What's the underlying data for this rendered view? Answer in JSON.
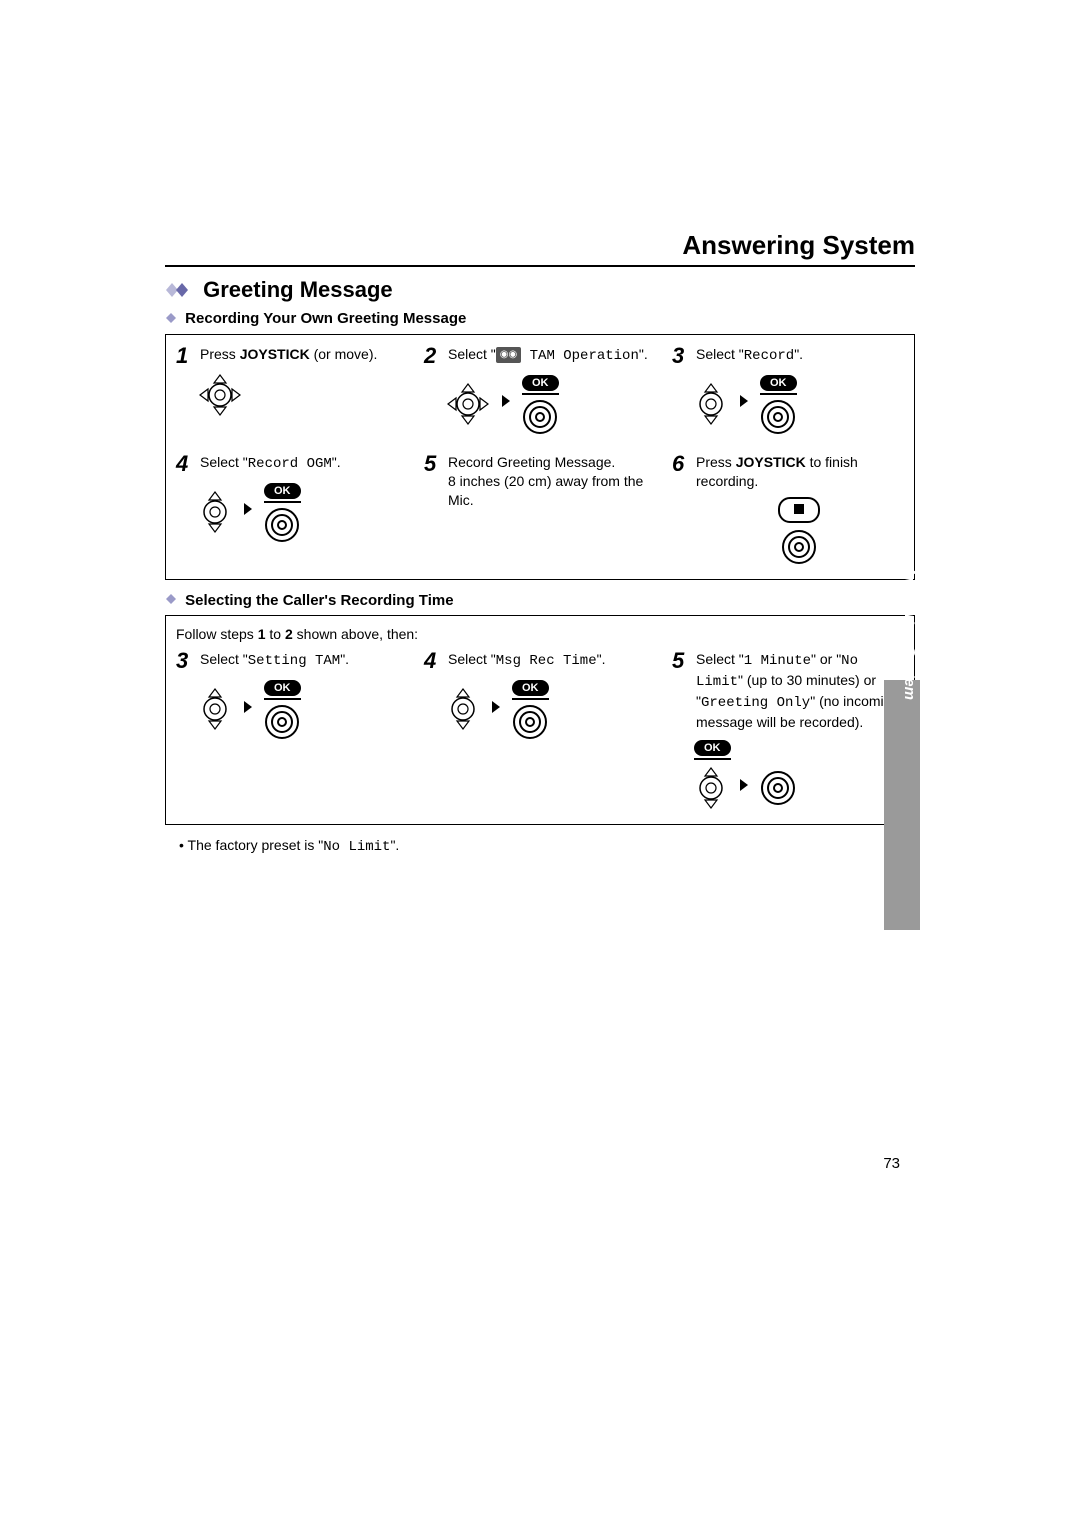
{
  "page_title": "Answering System",
  "section_title": "Greeting Message",
  "subsection1": "Recording Your Own Greeting Message",
  "subsection2": "Selecting the Caller's Recording Time",
  "steps_a": [
    {
      "num": "1",
      "pre": "Press ",
      "bold": "JOYSTICK",
      "post": " (or move).",
      "joystick": "full",
      "ok": false,
      "circle": false
    },
    {
      "num": "2",
      "pre": "Select \"",
      "tam": true,
      "mono": " TAM Operation",
      "post": "\".",
      "joystick": "full",
      "ok": true,
      "circle": true
    },
    {
      "num": "3",
      "pre": "Select \"",
      "mono": "Record",
      "post": "\".",
      "joystick": "updown",
      "ok": true,
      "circle": true
    },
    {
      "num": "4",
      "pre": "Select \"",
      "mono": "Record OGM",
      "post": "\".",
      "joystick": "updown",
      "ok": true,
      "circle": true
    },
    {
      "num": "5",
      "pre": "Record Greeting Message.\n8 inches (20 cm) away from the Mic.",
      "joystick": "none"
    },
    {
      "num": "6",
      "pre": "Press ",
      "bold": "JOYSTICK",
      "post": "  to finish recording.",
      "joystick": "stop",
      "circle": true
    }
  ],
  "follow_note": "Follow steps ",
  "follow_bold1": "1",
  "follow_mid": " to ",
  "follow_bold2": "2",
  "follow_end": " shown above, then:",
  "steps_b": [
    {
      "num": "3",
      "pre": "Select \"",
      "mono": "Setting TAM",
      "post": "\".",
      "joystick": "updown",
      "ok": true,
      "circle": true
    },
    {
      "num": "4",
      "pre": "Select \"",
      "mono": "Msg Rec Time",
      "post": "\".",
      "joystick": "updown",
      "ok": true,
      "circle": true
    },
    {
      "num": "5",
      "pre": "Select \"",
      "mono": "1 Minute",
      "post": "\" or \"",
      "mono2": "No Limit",
      "post2": "\" (up to 30 minutes) or \"",
      "mono3": "Greeting Only",
      "post3": "\" (no incoming message will be recorded).",
      "joystick": "updown",
      "ok": true,
      "circle": true,
      "okbelow": true
    }
  ],
  "factory_pre": "• The factory preset is \"",
  "factory_mono": "No Limit",
  "factory_post": "\".",
  "side_tab": "Answering System",
  "page_number": "73",
  "ok_label": "OK",
  "colors": {
    "text": "#000000",
    "bg": "#ffffff",
    "tab_bg": "#9a9a9a",
    "tab_text": "#ffffff"
  }
}
